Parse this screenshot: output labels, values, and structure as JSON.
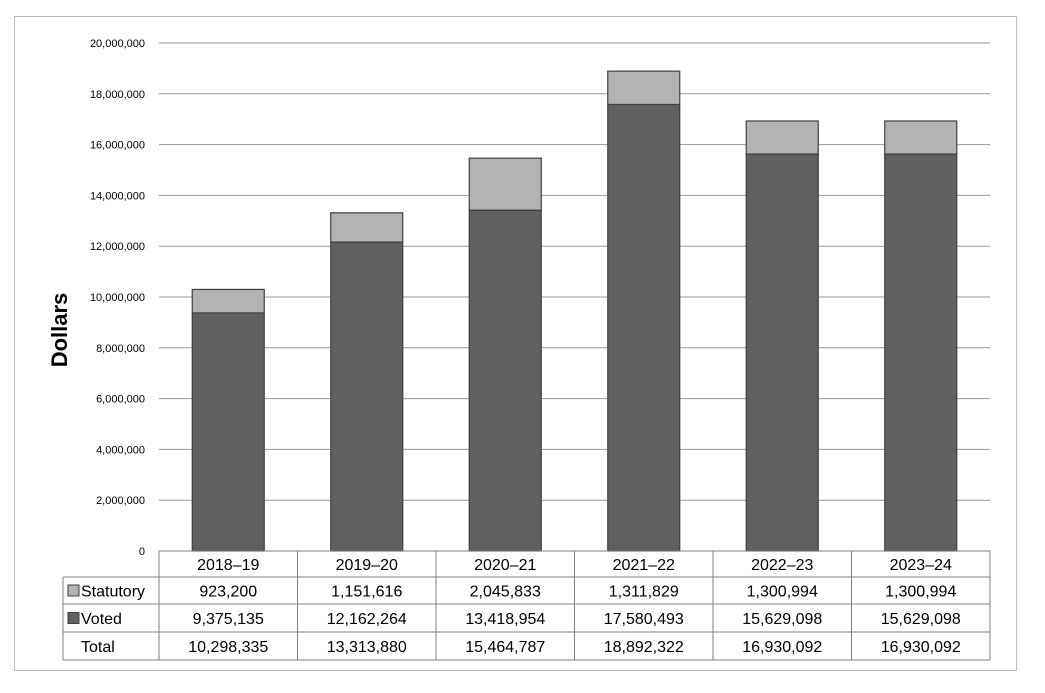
{
  "chart_data": {
    "type": "bar",
    "stacked": true,
    "categories": [
      "2018–19",
      "2019–20",
      "2020–21",
      "2021–22",
      "2022–23",
      "2023–24"
    ],
    "series": [
      {
        "name": "Voted",
        "values": [
          9375135,
          12162264,
          13418954,
          17580493,
          15629098,
          15629098
        ],
        "color": "#606060",
        "labels": [
          "9,375,135",
          "12,162,264",
          "13,418,954",
          "17,580,493",
          "15,629,098",
          "15,629,098"
        ]
      },
      {
        "name": "Statutory",
        "values": [
          923200,
          1151616,
          2045833,
          1311829,
          1300994,
          1300994
        ],
        "color": "#b3b3b3",
        "labels": [
          "923,200",
          "1,151,616",
          "2,045,833",
          "1,311,829",
          "1,300,994",
          "1,300,994"
        ]
      }
    ],
    "totals": {
      "name": "Total",
      "values": [
        10298335,
        13313880,
        15464787,
        18892322,
        16930092,
        16930092
      ],
      "labels": [
        "10,298,335",
        "13,313,880",
        "15,464,787",
        "18,892,322",
        "16,930,092",
        "16,930,092"
      ]
    },
    "ylabel": "Dollars",
    "ylim": [
      0,
      20000000
    ],
    "yticks": [
      0,
      2000000,
      4000000,
      6000000,
      8000000,
      10000000,
      12000000,
      14000000,
      16000000,
      18000000,
      20000000
    ],
    "ytick_labels": [
      "0",
      "2,000,000",
      "4,000,000",
      "6,000,000",
      "8,000,000",
      "10,000,000",
      "12,000,000",
      "14,000,000",
      "16,000,000",
      "18,000,000",
      "20,000,000"
    ],
    "grid": true,
    "legend": "data-table",
    "table_row_order": [
      "Statutory",
      "Voted",
      "Total"
    ],
    "gridline_color": "#999999",
    "bar_edge_color": "#404040"
  }
}
